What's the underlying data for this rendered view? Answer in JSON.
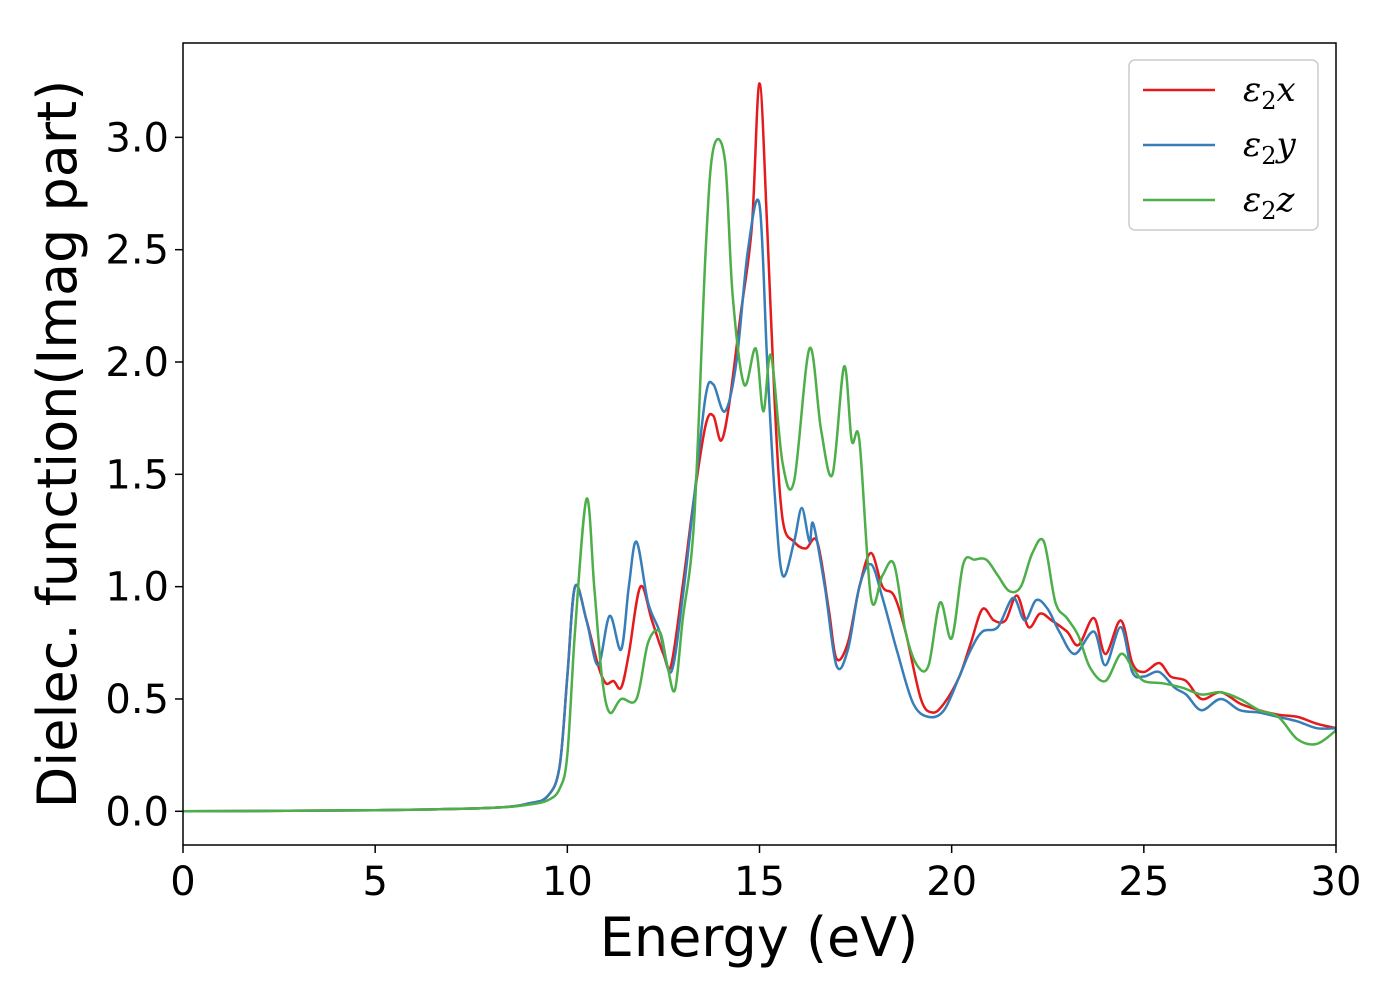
{
  "chart_data": {
    "type": "line",
    "xlabel": "Energy (eV)",
    "ylabel": "Dielec. function(Imag part)",
    "xlim": [
      0,
      30
    ],
    "ylim": [
      -0.15,
      3.42
    ],
    "xticks": [
      0,
      5,
      10,
      15,
      20,
      25,
      30
    ],
    "yticks": [
      0.0,
      0.5,
      1.0,
      1.5,
      2.0,
      2.5,
      3.0
    ],
    "xtick_labels": [
      "0",
      "5",
      "10",
      "15",
      "20",
      "25",
      "30"
    ],
    "ytick_labels": [
      "0.0",
      "0.5",
      "1.0",
      "1.5",
      "2.0",
      "2.5",
      "3.0"
    ],
    "grid": false,
    "legend_position": "top-right",
    "series": [
      {
        "name": "ε2x",
        "name_main": "ε",
        "name_sub": "2",
        "name_tail": "x",
        "color": "#e41a1c",
        "points": [
          [
            0,
            0
          ],
          [
            5,
            0.005
          ],
          [
            8,
            0.015
          ],
          [
            9,
            0.035
          ],
          [
            9.5,
            0.07
          ],
          [
            9.8,
            0.2
          ],
          [
            10,
            0.6
          ],
          [
            10.2,
            1.0
          ],
          [
            10.5,
            0.85
          ],
          [
            10.8,
            0.65
          ],
          [
            11,
            0.57
          ],
          [
            11.2,
            0.58
          ],
          [
            11.4,
            0.55
          ],
          [
            11.6,
            0.7
          ],
          [
            11.9,
            1.0
          ],
          [
            12.2,
            0.85
          ],
          [
            12.5,
            0.7
          ],
          [
            12.7,
            0.65
          ],
          [
            13,
            1.0
          ],
          [
            13.3,
            1.4
          ],
          [
            13.6,
            1.72
          ],
          [
            13.8,
            1.76
          ],
          [
            14,
            1.65
          ],
          [
            14.2,
            1.8
          ],
          [
            14.5,
            2.2
          ],
          [
            14.8,
            2.6
          ],
          [
            15,
            3.24
          ],
          [
            15.2,
            2.6
          ],
          [
            15.4,
            1.8
          ],
          [
            15.6,
            1.3
          ],
          [
            15.9,
            1.2
          ],
          [
            16.2,
            1.17
          ],
          [
            16.5,
            1.2
          ],
          [
            16.8,
            0.9
          ],
          [
            17,
            0.68
          ],
          [
            17.3,
            0.75
          ],
          [
            17.6,
            1.0
          ],
          [
            17.9,
            1.15
          ],
          [
            18.2,
            1.0
          ],
          [
            18.5,
            0.96
          ],
          [
            18.8,
            0.8
          ],
          [
            19.2,
            0.5
          ],
          [
            19.5,
            0.44
          ],
          [
            19.8,
            0.48
          ],
          [
            20.2,
            0.6
          ],
          [
            20.5,
            0.75
          ],
          [
            20.8,
            0.9
          ],
          [
            21.1,
            0.85
          ],
          [
            21.4,
            0.85
          ],
          [
            21.7,
            0.96
          ],
          [
            22,
            0.82
          ],
          [
            22.3,
            0.88
          ],
          [
            22.6,
            0.85
          ],
          [
            23,
            0.8
          ],
          [
            23.3,
            0.74
          ],
          [
            23.7,
            0.86
          ],
          [
            24,
            0.7
          ],
          [
            24.4,
            0.85
          ],
          [
            24.7,
            0.66
          ],
          [
            25,
            0.62
          ],
          [
            25.4,
            0.66
          ],
          [
            25.7,
            0.6
          ],
          [
            26.1,
            0.58
          ],
          [
            26.5,
            0.5
          ],
          [
            27,
            0.53
          ],
          [
            27.5,
            0.48
          ],
          [
            28,
            0.45
          ],
          [
            28.5,
            0.43
          ],
          [
            29,
            0.42
          ],
          [
            29.5,
            0.39
          ],
          [
            30,
            0.37
          ]
        ]
      },
      {
        "name": "ε2y",
        "name_main": "ε",
        "name_sub": "2",
        "name_tail": "y",
        "color": "#377eb8",
        "points": [
          [
            0,
            0
          ],
          [
            5,
            0.005
          ],
          [
            8,
            0.015
          ],
          [
            9,
            0.035
          ],
          [
            9.5,
            0.07
          ],
          [
            9.8,
            0.2
          ],
          [
            10,
            0.6
          ],
          [
            10.2,
            1.0
          ],
          [
            10.5,
            0.85
          ],
          [
            10.8,
            0.65
          ],
          [
            11.1,
            0.87
          ],
          [
            11.4,
            0.72
          ],
          [
            11.6,
            1.0
          ],
          [
            11.8,
            1.2
          ],
          [
            12.1,
            0.93
          ],
          [
            12.4,
            0.8
          ],
          [
            12.7,
            0.62
          ],
          [
            13,
            0.95
          ],
          [
            13.3,
            1.4
          ],
          [
            13.6,
            1.85
          ],
          [
            13.8,
            1.9
          ],
          [
            14.1,
            1.78
          ],
          [
            14.4,
            2.0
          ],
          [
            14.7,
            2.5
          ],
          [
            15,
            2.7
          ],
          [
            15.2,
            2.0
          ],
          [
            15.4,
            1.4
          ],
          [
            15.6,
            1.05
          ],
          [
            15.9,
            1.2
          ],
          [
            16.1,
            1.35
          ],
          [
            16.3,
            1.2
          ],
          [
            16.4,
            1.28
          ],
          [
            16.7,
            1.0
          ],
          [
            17,
            0.65
          ],
          [
            17.3,
            0.72
          ],
          [
            17.6,
            1.0
          ],
          [
            17.9,
            1.1
          ],
          [
            18.2,
            0.95
          ],
          [
            18.6,
            0.7
          ],
          [
            19,
            0.48
          ],
          [
            19.4,
            0.42
          ],
          [
            19.8,
            0.45
          ],
          [
            20.2,
            0.6
          ],
          [
            20.5,
            0.72
          ],
          [
            20.8,
            0.8
          ],
          [
            21.2,
            0.82
          ],
          [
            21.6,
            0.95
          ],
          [
            21.9,
            0.85
          ],
          [
            22.2,
            0.94
          ],
          [
            22.5,
            0.9
          ],
          [
            22.8,
            0.8
          ],
          [
            23.2,
            0.7
          ],
          [
            23.7,
            0.8
          ],
          [
            24,
            0.65
          ],
          [
            24.4,
            0.82
          ],
          [
            24.7,
            0.62
          ],
          [
            25,
            0.6
          ],
          [
            25.4,
            0.62
          ],
          [
            25.8,
            0.55
          ],
          [
            26.1,
            0.52
          ],
          [
            26.5,
            0.45
          ],
          [
            27,
            0.5
          ],
          [
            27.5,
            0.45
          ],
          [
            28,
            0.44
          ],
          [
            28.5,
            0.42
          ],
          [
            29,
            0.4
          ],
          [
            29.5,
            0.37
          ],
          [
            30,
            0.37
          ]
        ]
      },
      {
        "name": "ε2z",
        "name_main": "ε",
        "name_sub": "2",
        "name_tail": "z",
        "color": "#4daf4a",
        "points": [
          [
            0,
            0
          ],
          [
            5,
            0.005
          ],
          [
            8,
            0.015
          ],
          [
            9,
            0.03
          ],
          [
            9.5,
            0.05
          ],
          [
            9.8,
            0.1
          ],
          [
            10,
            0.25
          ],
          [
            10.2,
            0.8
          ],
          [
            10.5,
            1.39
          ],
          [
            10.7,
            1.0
          ],
          [
            10.9,
            0.6
          ],
          [
            11.1,
            0.44
          ],
          [
            11.4,
            0.5
          ],
          [
            11.8,
            0.5
          ],
          [
            12.1,
            0.75
          ],
          [
            12.4,
            0.8
          ],
          [
            12.6,
            0.65
          ],
          [
            12.8,
            0.54
          ],
          [
            13,
            0.85
          ],
          [
            13.3,
            1.3
          ],
          [
            13.6,
            2.5
          ],
          [
            13.8,
            2.95
          ],
          [
            14.1,
            2.9
          ],
          [
            14.3,
            2.3
          ],
          [
            14.6,
            1.9
          ],
          [
            14.9,
            2.06
          ],
          [
            15.1,
            1.78
          ],
          [
            15.3,
            2.03
          ],
          [
            15.6,
            1.55
          ],
          [
            15.9,
            1.47
          ],
          [
            16.3,
            2.06
          ],
          [
            16.6,
            1.7
          ],
          [
            16.9,
            1.5
          ],
          [
            17.2,
            1.98
          ],
          [
            17.4,
            1.65
          ],
          [
            17.6,
            1.65
          ],
          [
            17.9,
            0.95
          ],
          [
            18.2,
            1.05
          ],
          [
            18.5,
            1.1
          ],
          [
            18.8,
            0.8
          ],
          [
            19.1,
            0.65
          ],
          [
            19.4,
            0.65
          ],
          [
            19.7,
            0.93
          ],
          [
            20,
            0.77
          ],
          [
            20.3,
            1.1
          ],
          [
            20.6,
            1.12
          ],
          [
            20.9,
            1.12
          ],
          [
            21.2,
            1.05
          ],
          [
            21.5,
            0.98
          ],
          [
            21.8,
            1.0
          ],
          [
            22.1,
            1.15
          ],
          [
            22.4,
            1.2
          ],
          [
            22.7,
            0.93
          ],
          [
            23,
            0.86
          ],
          [
            23.3,
            0.78
          ],
          [
            23.6,
            0.64
          ],
          [
            24,
            0.58
          ],
          [
            24.4,
            0.7
          ],
          [
            24.7,
            0.64
          ],
          [
            25,
            0.58
          ],
          [
            25.5,
            0.57
          ],
          [
            26,
            0.55
          ],
          [
            26.5,
            0.52
          ],
          [
            27,
            0.53
          ],
          [
            27.5,
            0.5
          ],
          [
            28,
            0.45
          ],
          [
            28.5,
            0.42
          ],
          [
            29,
            0.32
          ],
          [
            29.5,
            0.3
          ],
          [
            30,
            0.36
          ]
        ]
      }
    ]
  }
}
